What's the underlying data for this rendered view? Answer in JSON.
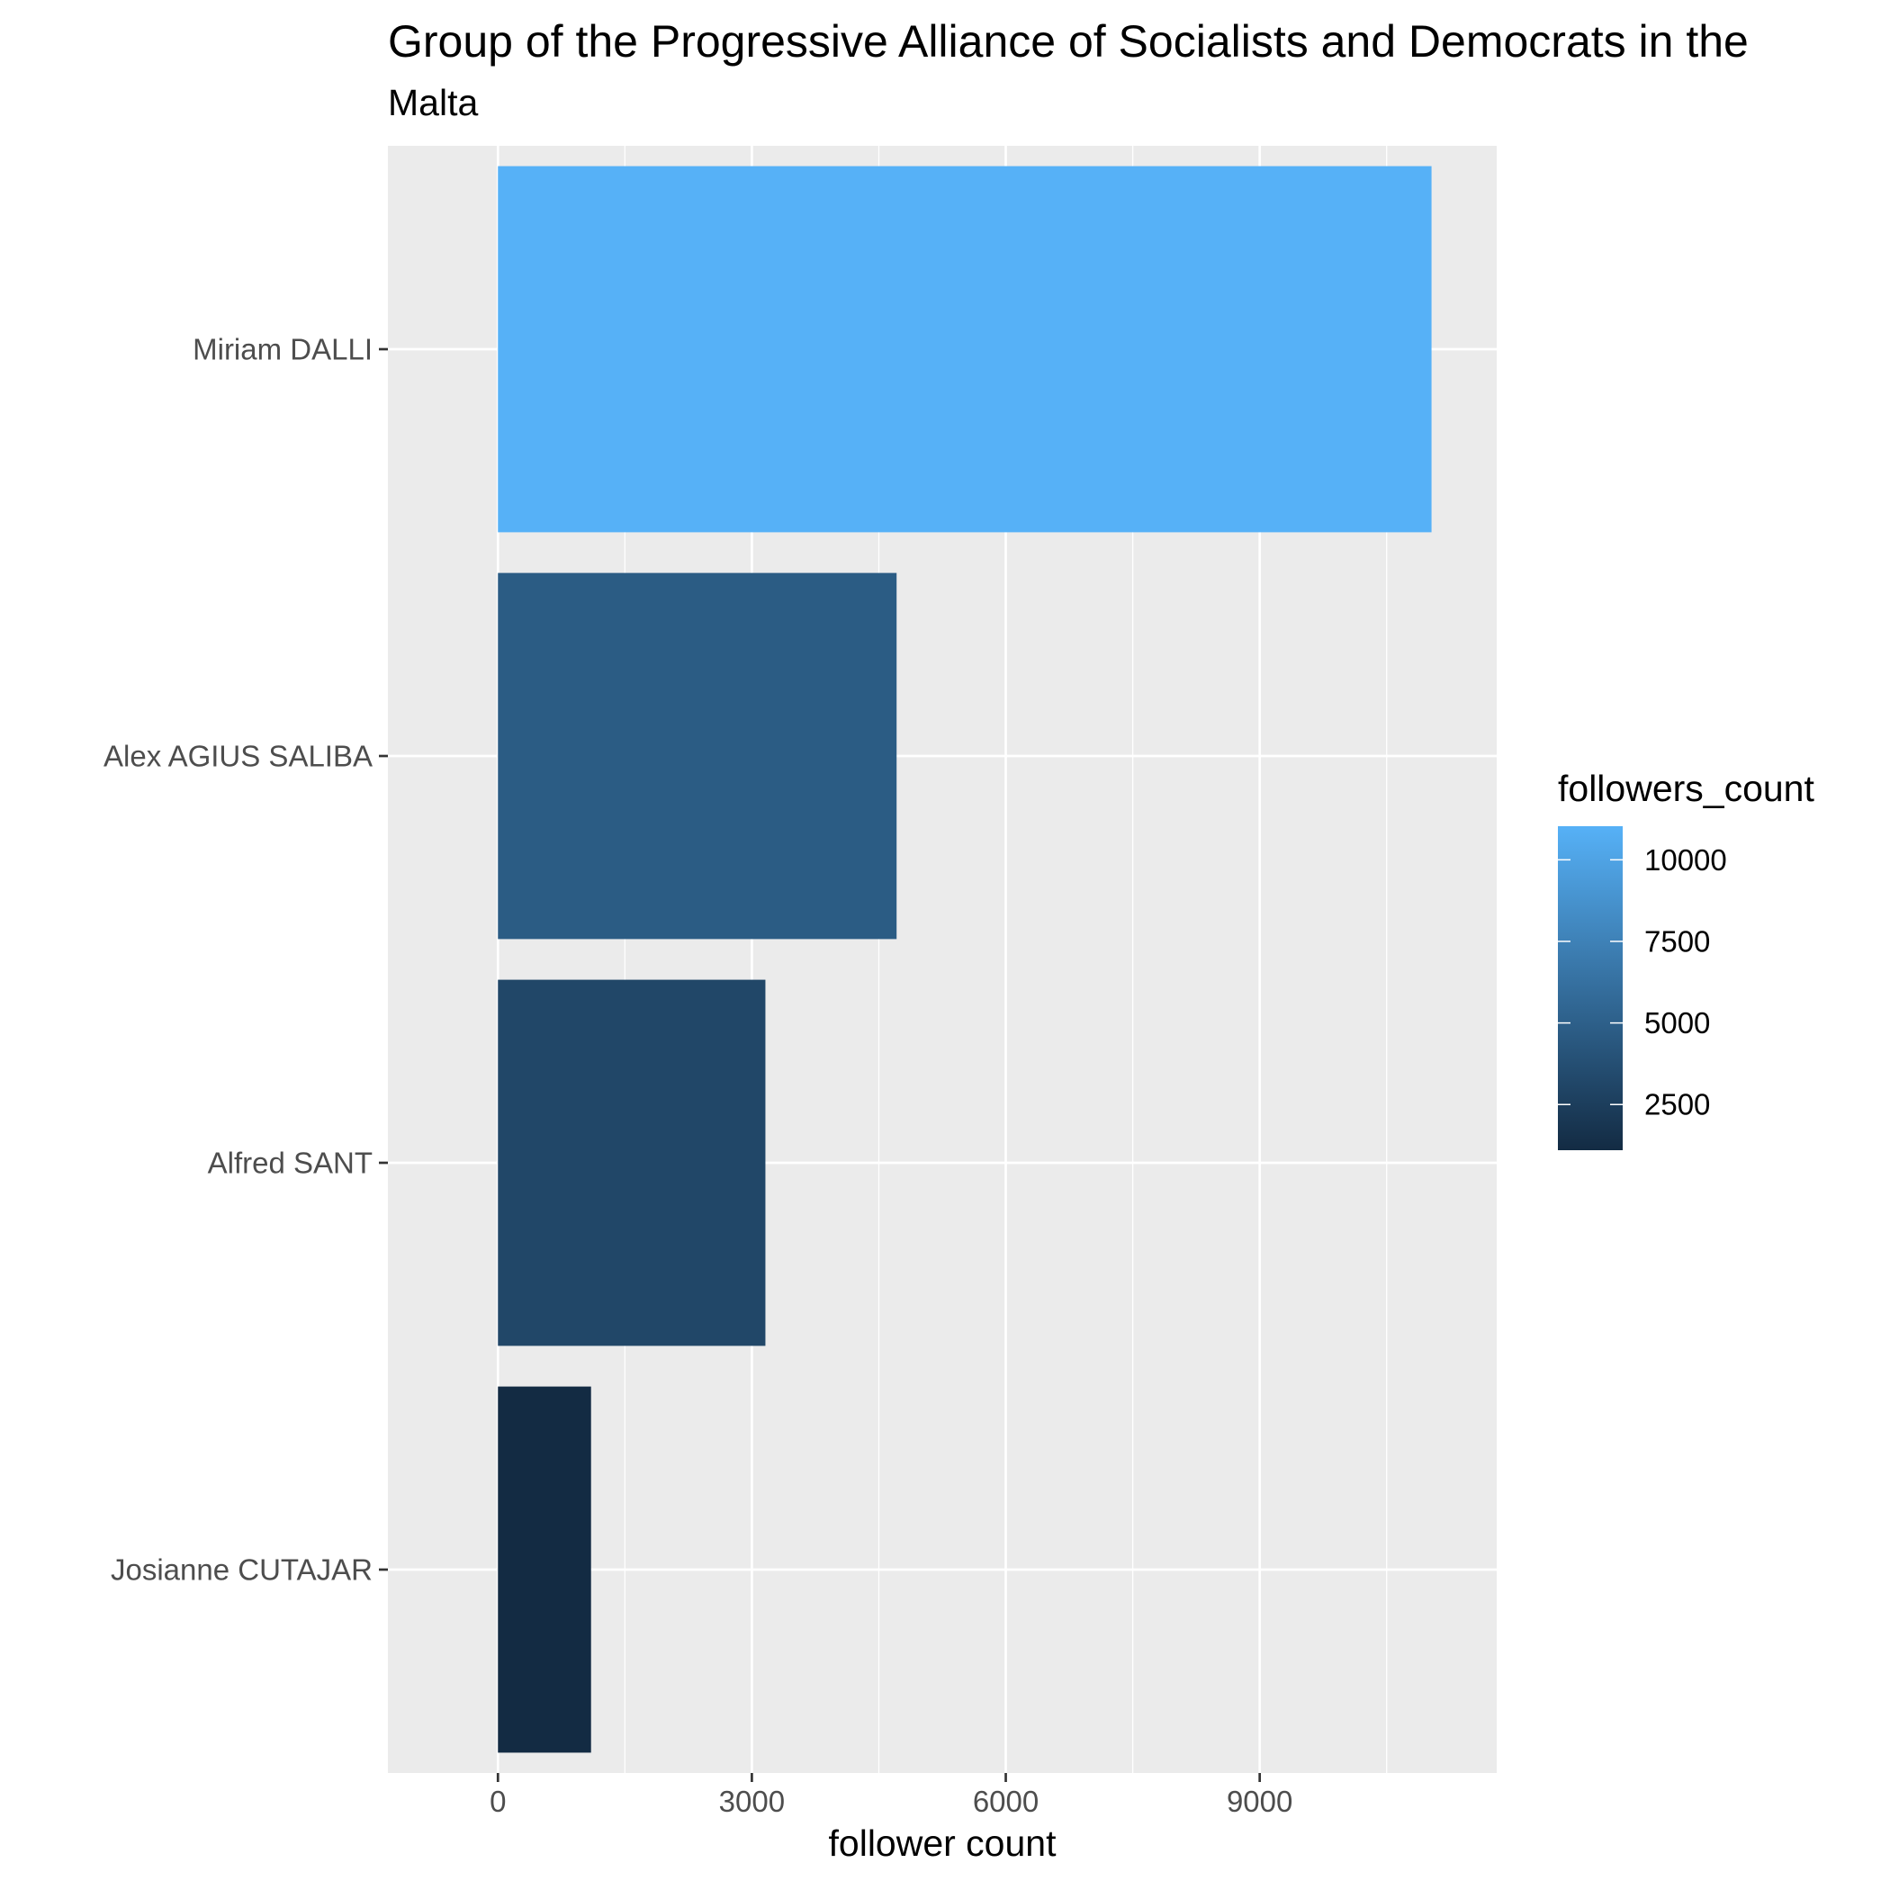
{
  "chart_data": {
    "type": "bar",
    "orientation": "horizontal",
    "title": "Group of the Progressive Alliance of Socialists and Democrats in the",
    "subtitle": "Malta",
    "xlabel": "follower count",
    "ylabel": "",
    "categories": [
      "Miriam DALLI",
      "Alex AGIUS SALIBA",
      "Alfred SANT",
      "Josianne CUTAJAR"
    ],
    "values": [
      11030,
      4710,
      3160,
      1100
    ],
    "xlim": [
      -1300,
      11800
    ],
    "xticks": [
      0,
      3000,
      6000,
      9000
    ],
    "xtick_labels": [
      "0",
      "3000",
      "6000",
      "9000"
    ],
    "grid": true,
    "legend": {
      "title": "followers_count",
      "position": "right",
      "type": "colorbar",
      "range": [
        1100,
        11030
      ],
      "breaks": [
        2500,
        5000,
        7500,
        10000
      ],
      "break_labels": [
        "2500",
        "5000",
        "7500",
        "10000"
      ],
      "color_low": "#132B43",
      "color_high": "#56B1F7"
    },
    "colors": {
      "panel_background": "#EBEBEB",
      "grid": "#FFFFFF",
      "tick_text": "#4D4D4D"
    }
  }
}
